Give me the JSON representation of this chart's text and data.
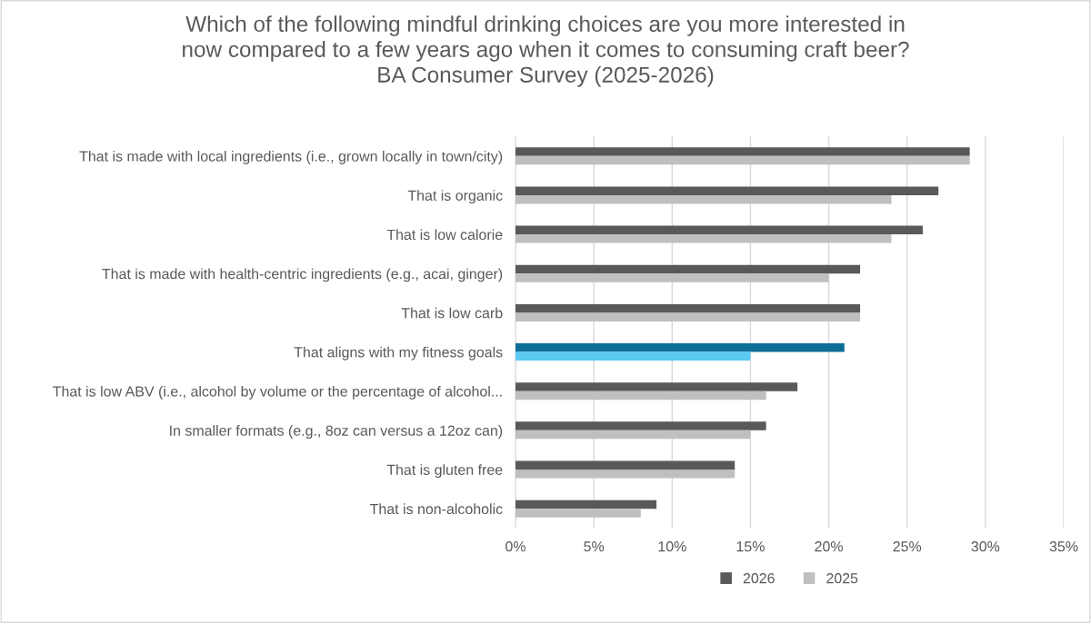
{
  "chart_data": {
    "type": "bar",
    "orientation": "horizontal",
    "title": "Which of the following mindful drinking choices are you more interested in\nnow compared to a few years ago when it comes to consuming craft beer?\nBA Consumer Survey (2025-2026)",
    "categories": [
      "That is made with local ingredients (i.e., grown locally in town/city)",
      "That is organic",
      "That is low calorie",
      "That is made with health-centric ingredients (e.g., acai, ginger)",
      "That is low carb",
      "That aligns with my fitness goals",
      "That is low ABV (i.e., alcohol by volume or the percentage of alcohol...",
      "In smaller formats (e.g., 8oz can versus a 12oz can)",
      "That is gluten free",
      "That is non-alcoholic"
    ],
    "series": [
      {
        "name": "2026",
        "color": "#595959",
        "colors": [
          "#595959",
          "#595959",
          "#595959",
          "#595959",
          "#595959",
          "#0e6f96",
          "#595959",
          "#595959",
          "#595959",
          "#595959"
        ],
        "values": [
          29,
          27,
          26,
          22,
          22,
          21,
          18,
          16,
          14,
          9
        ]
      },
      {
        "name": "2025",
        "color": "#bfbfbf",
        "colors": [
          "#bfbfbf",
          "#bfbfbf",
          "#bfbfbf",
          "#bfbfbf",
          "#bfbfbf",
          "#5bc9f2",
          "#bfbfbf",
          "#bfbfbf",
          "#bfbfbf",
          "#bfbfbf"
        ],
        "values": [
          29,
          24,
          24,
          20,
          22,
          15,
          16,
          15,
          14,
          8
        ]
      }
    ],
    "xlim": [
      0,
      35
    ],
    "xticks": [
      {
        "value": 0,
        "label": "0%"
      },
      {
        "value": 5,
        "label": "5%"
      },
      {
        "value": 10,
        "label": "10%"
      },
      {
        "value": 15,
        "label": "15%"
      },
      {
        "value": 20,
        "label": "20%"
      },
      {
        "value": 25,
        "label": "25%"
      },
      {
        "value": 30,
        "label": "30%"
      },
      {
        "value": 35,
        "label": "35%"
      }
    ],
    "grid": "x",
    "legend": "bottom"
  }
}
